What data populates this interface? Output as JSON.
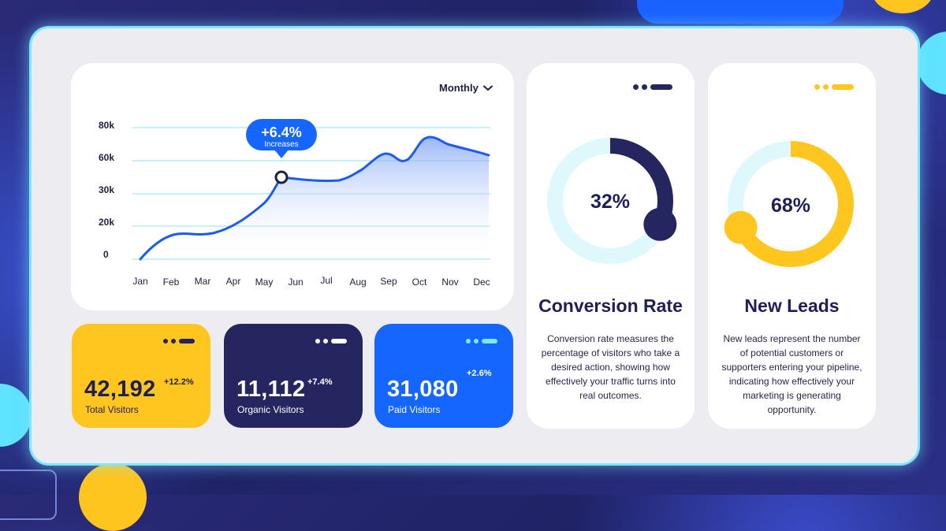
{
  "chart": {
    "period_label": "Monthly",
    "y_ticks": [
      "80k",
      "60k",
      "30k",
      "20k",
      "0"
    ],
    "months": [
      "Jan",
      "Feb",
      "Mar",
      "Apr",
      "May",
      "Jun",
      "Jul",
      "Aug",
      "Sep",
      "Oct",
      "Nov",
      "Dec"
    ],
    "tooltip": {
      "value": "+6.4%",
      "label": "Increases"
    },
    "colors": {
      "line": "#1b5cf0",
      "grid": "#8fe3f3",
      "tooltip": "#1565ff"
    }
  },
  "stats": [
    {
      "value": "42,192",
      "change": "+12.2%",
      "label": "Total Visitors"
    },
    {
      "value": "11,112",
      "change": "+7.4%",
      "label": "Organic Visitors"
    },
    {
      "value": "31,080",
      "change": "+2.6%",
      "label": "Paid Visitors"
    }
  ],
  "conversion": {
    "percent_text": "32%",
    "fraction": 0.32,
    "title": "Conversion Rate",
    "description": "Conversion rate measures the percentage of visitors who take a desired action, showing how effectively your traffic turns into real outcomes.",
    "color": "#25255f"
  },
  "leads": {
    "percent_text": "68%",
    "fraction": 0.68,
    "title": "New Leads",
    "description": "New leads represent the number of potential customers or supporters entering your pipeline, indicating how effectively your marketing is generating opportunity.",
    "color": "#ffc61f"
  }
}
